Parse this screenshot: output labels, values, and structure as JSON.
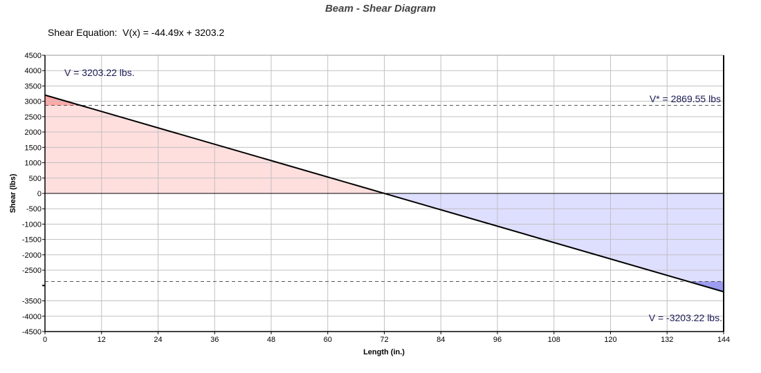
{
  "chart_data": {
    "type": "area",
    "title": "Beam - Shear Diagram",
    "subtitle": "Shear Equation:  V(x) = -44.49x + 3203.2",
    "xlabel": "Length (in.)",
    "ylabel": "Shear (lbs)",
    "xlim": [
      0,
      144
    ],
    "ylim": [
      -4500,
      4500
    ],
    "xticks": [
      0,
      12,
      24,
      36,
      48,
      60,
      72,
      84,
      96,
      108,
      120,
      132,
      144
    ],
    "yticks": [
      4500,
      4000,
      3500,
      3000,
      2500,
      2000,
      1500,
      1000,
      500,
      0,
      -500,
      -1000,
      -1500,
      -2000,
      -2500,
      -3500,
      -4000,
      -4500
    ],
    "grid": true,
    "series": [
      {
        "x": [
          0,
          144
        ],
        "y": [
          3203.22,
          -3203.22
        ],
        "color": "#000000"
      }
    ],
    "reference_lines": [
      2869.55,
      -2869.55
    ],
    "annotations": {
      "vmax": "V = 3203.22 lbs.",
      "vstar": "V* = 2869.55 lbs",
      "vmin": "V = -3203.22 lbs."
    },
    "colors": {
      "positive_fill": "#ffdede",
      "positive_exceed_fill": "#ffa8a8",
      "negative_fill": "#dedeff",
      "negative_exceed_fill": "#9c9cf0",
      "annotation_text": "#1a1a55"
    }
  }
}
